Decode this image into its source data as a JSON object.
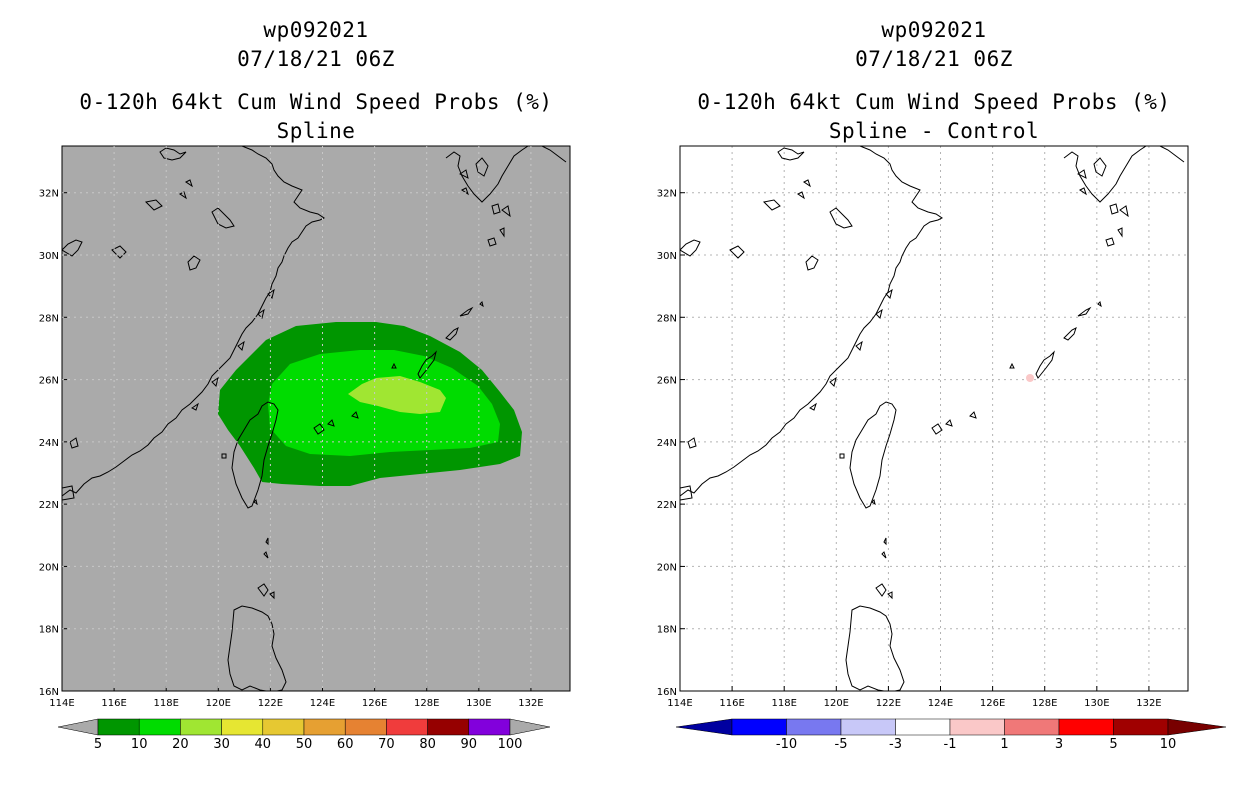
{
  "left_panel": {
    "storm_id": "wp092021",
    "datetime": "07/18/21 06Z",
    "product": "0-120h 64kt Cum Wind Speed Probs (%)",
    "subtitle": "Spline",
    "background_color": "#aaaaaa",
    "colorbar": {
      "labels": [
        "5",
        "10",
        "20",
        "30",
        "40",
        "50",
        "60",
        "70",
        "80",
        "90",
        "100"
      ],
      "colors": [
        "#009600",
        "#00dc00",
        "#a0e632",
        "#e6e632",
        "#e6c832",
        "#e6a032",
        "#e68232",
        "#f03c3c",
        "#960000",
        "#8200dc"
      ],
      "end_color": "#aaaaaa"
    },
    "probability_regions": [
      {
        "level": "5",
        "color": "#009600"
      },
      {
        "level": "10",
        "color": "#00dc00"
      },
      {
        "level": "20",
        "color": "#a0e632"
      }
    ]
  },
  "right_panel": {
    "storm_id": "wp092021",
    "datetime": "07/18/21 06Z",
    "product": "0-120h 64kt Cum Wind Speed Probs (%)",
    "subtitle": "Spline - Control",
    "background_color": "#ffffff",
    "colorbar": {
      "labels": [
        "-10",
        "-5",
        "-3",
        "-1",
        "1",
        "3",
        "5",
        "10"
      ],
      "colors": [
        "#0000a0",
        "#0000ff",
        "#7878f0",
        "#c8c8f8",
        "#ffffff",
        "#fac8c8",
        "#f07878",
        "#ff0000",
        "#a00000"
      ],
      "low_end_color": "#0000a0",
      "high_end_color": "#780000"
    },
    "difference_regions": [
      {
        "level": "1",
        "color": "#fac8c8"
      }
    ]
  },
  "map": {
    "lon_labels": [
      "114E",
      "116E",
      "118E",
      "120E",
      "122E",
      "124E",
      "126E",
      "128E",
      "130E",
      "132E"
    ],
    "lat_labels": [
      "32N",
      "30N",
      "28N",
      "26N",
      "24N",
      "22N",
      "20N",
      "18N",
      "16N"
    ],
    "lon_values": [
      114,
      116,
      118,
      120,
      122,
      124,
      126,
      128,
      130,
      132
    ],
    "lat_values": [
      32,
      30,
      28,
      26,
      24,
      22,
      20,
      18,
      16
    ],
    "lon_range": [
      114,
      133.5
    ],
    "lat_range": [
      16,
      33.5
    ]
  }
}
